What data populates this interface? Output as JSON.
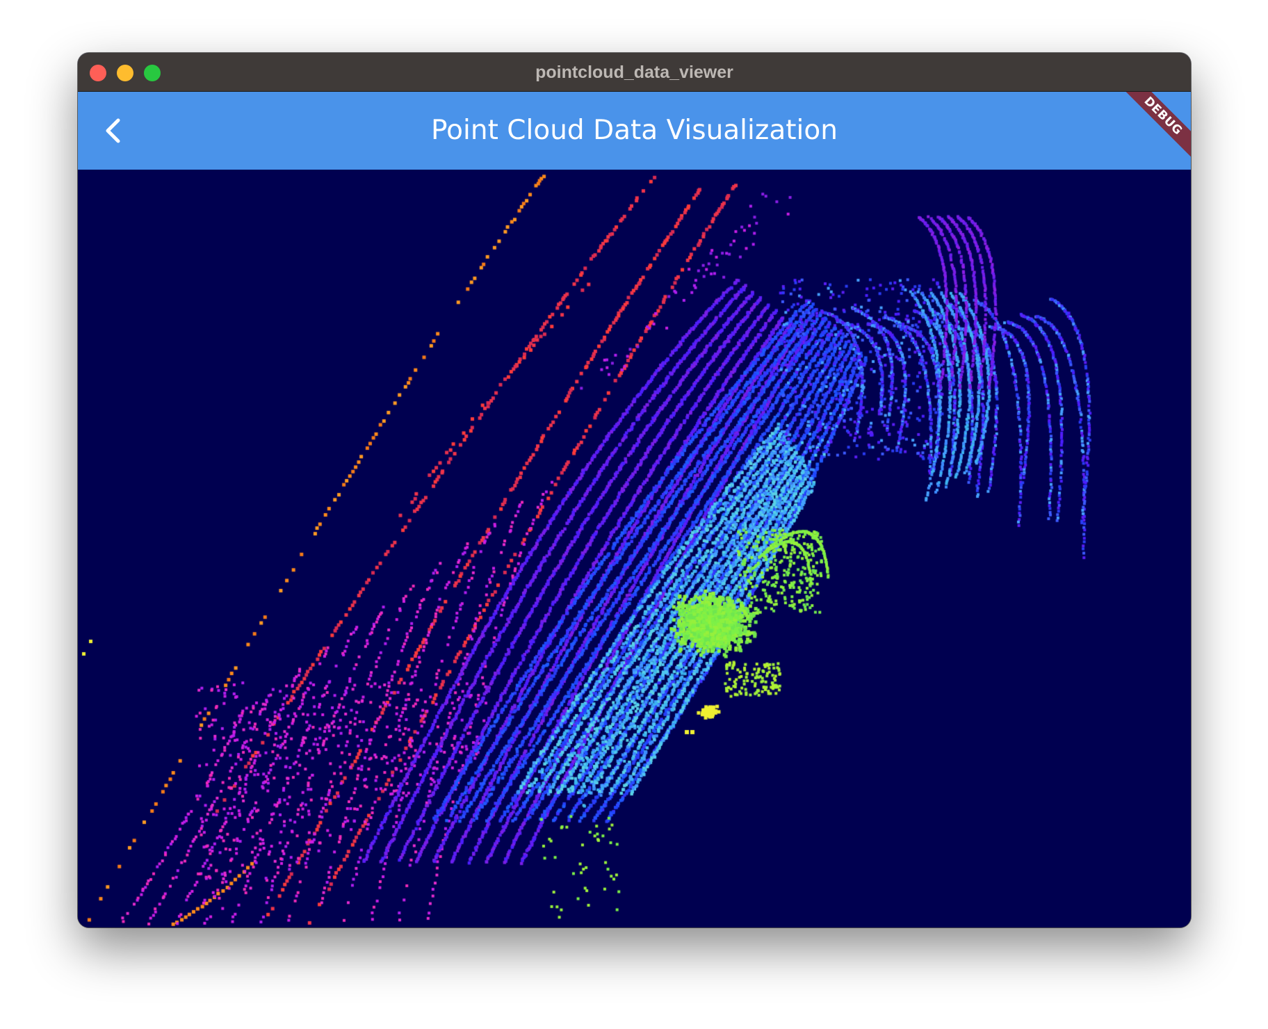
{
  "window": {
    "title": "pointcloud_data_viewer",
    "traffic_lights": [
      "close",
      "minimize",
      "maximize"
    ]
  },
  "appbar": {
    "title": "Point Cloud Data Visualization",
    "back_icon": "chevron-left-icon",
    "background": "#4a93ea"
  },
  "debug_banner": {
    "label": "DEBUG"
  },
  "viewport": {
    "background": "#000050",
    "colormap": "rainbow-by-height",
    "clusters": [
      {
        "name": "orange-scan-line",
        "color": "#ff8a1a"
      },
      {
        "name": "red-scan-lines",
        "color": "#e5304d"
      },
      {
        "name": "magenta-ground",
        "color": "#d21ee1"
      },
      {
        "name": "violet-arcs",
        "color": "#5a1ef5"
      },
      {
        "name": "blue-arcs",
        "color": "#1e46ff"
      },
      {
        "name": "cyan-arcs",
        "color": "#3cb4f0"
      },
      {
        "name": "green-object",
        "color": "#7cf048"
      },
      {
        "name": "yellow-object",
        "color": "#f0f032"
      }
    ]
  }
}
